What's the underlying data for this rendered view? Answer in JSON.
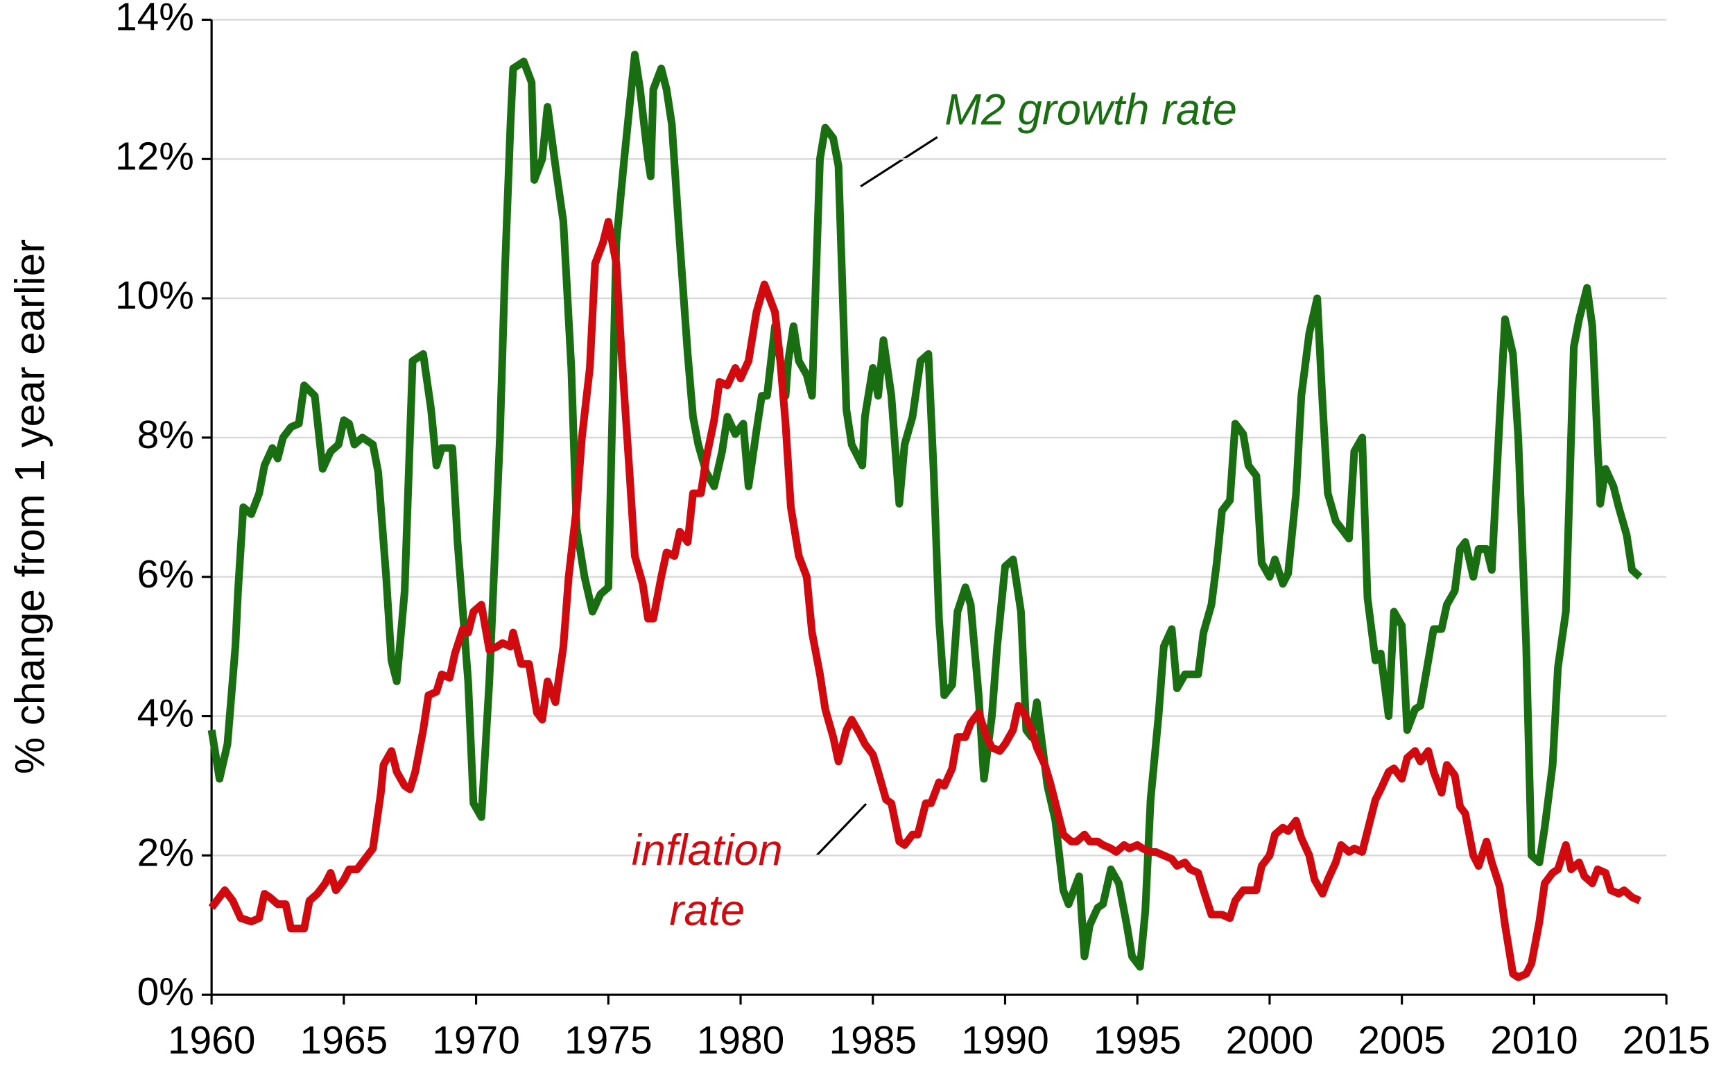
{
  "chart_data": {
    "type": "line",
    "y_label": "% change from 1 year earlier",
    "xlim": [
      1960,
      2015
    ],
    "xticks": [
      1960,
      1965,
      1970,
      1975,
      1980,
      1985,
      1990,
      1995,
      2000,
      2005,
      2010,
      2015
    ],
    "ylim": [
      0,
      14
    ],
    "yticks": [
      {
        "value": 0,
        "label": "0%"
      },
      {
        "value": 2,
        "label": "2%"
      },
      {
        "value": 4,
        "label": "4%"
      },
      {
        "value": 6,
        "label": "6%"
      },
      {
        "value": 8,
        "label": "8%"
      },
      {
        "value": 10,
        "label": "10%"
      },
      {
        "value": 12,
        "label": "12%"
      },
      {
        "value": 14,
        "label": "14%"
      }
    ],
    "grid": true,
    "series": [
      {
        "name": "M2 growth rate",
        "color": "#1a6e12",
        "x": [
          1960.0,
          1960.3,
          1960.6,
          1960.9,
          1961.0,
          1961.2,
          1961.5,
          1961.8,
          1962.0,
          1962.3,
          1962.5,
          1962.7,
          1963.0,
          1963.3,
          1963.5,
          1963.9,
          1964.2,
          1964.5,
          1964.8,
          1965.0,
          1965.2,
          1965.4,
          1965.7,
          1966.1,
          1966.3,
          1966.6,
          1966.8,
          1967.0,
          1967.3,
          1967.6,
          1968.0,
          1968.3,
          1968.5,
          1968.7,
          1969.1,
          1969.3,
          1969.7,
          1969.9,
          1970.2,
          1970.5,
          1970.9,
          1971.1,
          1971.3,
          1971.4,
          1971.8,
          1972.1,
          1972.2,
          1972.5,
          1972.7,
          1973.0,
          1973.3,
          1973.6,
          1973.8,
          1974.1,
          1974.4,
          1974.7,
          1975.0,
          1975.3,
          1975.6,
          1976.0,
          1976.2,
          1976.5,
          1976.6,
          1976.7,
          1977.0,
          1977.2,
          1977.4,
          1977.7,
          1978.0,
          1978.2,
          1978.4,
          1978.7,
          1979.0,
          1979.3,
          1979.5,
          1979.8,
          1980.1,
          1980.3,
          1980.6,
          1980.8,
          1981.0,
          1981.3,
          1981.5,
          1981.7,
          1981.8,
          1982.0,
          1982.2,
          1982.5,
          1982.7,
          1983.0,
          1983.2,
          1983.5,
          1983.7,
          1984.0,
          1984.2,
          1984.6,
          1984.7,
          1985.0,
          1985.2,
          1985.4,
          1985.7,
          1986.0,
          1986.2,
          1986.5,
          1986.8,
          1987.1,
          1987.3,
          1987.5,
          1987.7,
          1988.0,
          1988.2,
          1988.5,
          1988.7,
          1989.0,
          1989.2,
          1989.5,
          1989.7,
          1990.0,
          1990.3,
          1990.6,
          1990.8,
          1991.0,
          1991.2,
          1991.6,
          1991.9,
          1992.2,
          1992.4,
          1992.8,
          1993.0,
          1993.2,
          1993.5,
          1993.7,
          1994.0,
          1994.3,
          1994.6,
          1994.8,
          1995.1,
          1995.3,
          1995.5,
          1995.8,
          1996.0,
          1996.3,
          1996.5,
          1996.8,
          1997.3,
          1997.5,
          1997.8,
          1998.0,
          1998.2,
          1998.5,
          1998.7,
          1999.0,
          1999.2,
          1999.5,
          1999.7,
          2000.0,
          2000.2,
          2000.5,
          2000.7,
          2001.0,
          2001.2,
          2001.5,
          2001.8,
          2002.0,
          2002.2,
          2002.5,
          2002.7,
          2003.0,
          2003.2,
          2003.5,
          2003.7,
          2004.0,
          2004.2,
          2004.5,
          2004.7,
          2005.0,
          2005.2,
          2005.5,
          2005.7,
          2006.0,
          2006.2,
          2006.5,
          2006.7,
          2007.0,
          2007.2,
          2007.4,
          2007.7,
          2007.9,
          2008.2,
          2008.4,
          2008.7,
          2008.9,
          2009.2,
          2009.4,
          2009.7,
          2009.9,
          2010.2,
          2010.4,
          2010.7,
          2010.9,
          2011.2,
          2011.5,
          2011.7,
          2012.0,
          2012.2,
          2012.5,
          2012.7,
          2013.0,
          2013.2,
          2013.5,
          2013.7,
          2014.0
        ],
        "values": [
          3.8,
          3.1,
          3.6,
          5.0,
          5.8,
          7.0,
          6.9,
          7.2,
          7.6,
          7.85,
          7.7,
          8.0,
          8.15,
          8.2,
          8.75,
          8.6,
          7.55,
          7.8,
          7.9,
          8.25,
          8.2,
          7.9,
          8.0,
          7.9,
          7.5,
          6.0,
          4.8,
          4.5,
          5.8,
          9.1,
          9.2,
          8.4,
          7.6,
          7.85,
          7.85,
          6.5,
          4.5,
          2.75,
          2.55,
          4.5,
          8.0,
          10.5,
          12.5,
          13.3,
          13.4,
          13.1,
          11.7,
          12.0,
          12.75,
          11.9,
          11.1,
          9.0,
          6.7,
          6.0,
          5.5,
          5.75,
          5.85,
          10.8,
          12.0,
          13.5,
          13.0,
          12.0,
          11.75,
          13.0,
          13.3,
          13.0,
          12.5,
          10.8,
          9.2,
          8.3,
          7.9,
          7.5,
          7.3,
          7.8,
          8.3,
          8.05,
          8.2,
          7.3,
          8.1,
          8.6,
          8.6,
          9.6,
          9.1,
          8.6,
          9.1,
          9.6,
          9.1,
          8.9,
          8.6,
          12.0,
          12.45,
          12.3,
          11.9,
          8.4,
          7.9,
          7.6,
          8.3,
          9.0,
          8.6,
          9.4,
          8.6,
          7.05,
          7.9,
          8.3,
          9.1,
          9.2,
          7.5,
          5.4,
          4.3,
          4.45,
          5.5,
          5.85,
          5.6,
          4.3,
          3.1,
          4.0,
          5.0,
          6.15,
          6.25,
          5.5,
          3.8,
          3.7,
          4.2,
          3.0,
          2.5,
          1.5,
          1.3,
          1.7,
          0.55,
          1.0,
          1.25,
          1.3,
          1.8,
          1.6,
          1.0,
          0.55,
          0.4,
          1.2,
          2.8,
          4.0,
          5.0,
          5.25,
          4.4,
          4.6,
          4.6,
          5.2,
          5.6,
          6.2,
          6.95,
          7.1,
          8.2,
          8.05,
          7.6,
          7.45,
          6.2,
          6.0,
          6.25,
          5.9,
          6.05,
          7.2,
          8.6,
          9.5,
          10.0,
          8.5,
          7.2,
          6.8,
          6.7,
          6.55,
          7.8,
          8.0,
          5.7,
          4.8,
          4.9,
          4.0,
          5.5,
          5.3,
          3.8,
          4.1,
          4.15,
          4.8,
          5.25,
          5.25,
          5.6,
          5.8,
          6.4,
          6.5,
          6.0,
          6.4,
          6.4,
          6.1,
          8.3,
          9.7,
          9.2,
          8.0,
          5.0,
          2.0,
          1.9,
          2.4,
          3.3,
          4.7,
          5.5,
          9.3,
          9.7,
          10.15,
          9.6,
          7.05,
          7.55,
          7.3,
          7.0,
          6.6,
          6.1,
          6.0
        ]
      },
      {
        "name": "inflation rate",
        "color": "#d10a10",
        "x": [
          1960.0,
          1960.2,
          1960.5,
          1960.8,
          1961.1,
          1961.5,
          1961.8,
          1962.0,
          1962.2,
          1962.5,
          1962.8,
          1963.0,
          1963.2,
          1963.5,
          1963.7,
          1964.0,
          1964.3,
          1964.5,
          1964.7,
          1965.0,
          1965.2,
          1965.5,
          1965.8,
          1966.1,
          1966.4,
          1966.5,
          1966.8,
          1967.0,
          1967.3,
          1967.5,
          1967.7,
          1968.0,
          1968.2,
          1968.5,
          1968.7,
          1969.0,
          1969.2,
          1969.5,
          1969.7,
          1969.9,
          1970.2,
          1970.5,
          1970.8,
          1971.0,
          1971.3,
          1971.4,
          1971.7,
          1972.0,
          1972.3,
          1972.5,
          1972.7,
          1973.0,
          1973.3,
          1973.5,
          1973.8,
          1974.0,
          1974.3,
          1974.5,
          1974.8,
          1975.0,
          1975.3,
          1975.5,
          1975.8,
          1976.0,
          1976.3,
          1976.5,
          1976.7,
          1977.0,
          1977.2,
          1977.5,
          1977.7,
          1978.0,
          1978.2,
          1978.5,
          1978.7,
          1979.0,
          1979.2,
          1979.5,
          1979.8,
          1980.0,
          1980.3,
          1980.6,
          1980.9,
          1981.3,
          1981.5,
          1981.7,
          1981.9,
          1982.2,
          1982.5,
          1982.7,
          1983.0,
          1983.2,
          1983.5,
          1983.7,
          1984.0,
          1984.2,
          1984.5,
          1984.7,
          1985.0,
          1985.2,
          1985.5,
          1985.7,
          1986.0,
          1986.2,
          1986.5,
          1986.7,
          1987.0,
          1987.2,
          1987.5,
          1987.7,
          1988.0,
          1988.2,
          1988.5,
          1988.7,
          1989.0,
          1989.3,
          1989.5,
          1989.8,
          1990.0,
          1990.3,
          1990.5,
          1990.7,
          1991.0,
          1991.2,
          1991.5,
          1991.7,
          1992.0,
          1992.2,
          1992.5,
          1992.7,
          1993.0,
          1993.2,
          1993.5,
          1993.7,
          1994.0,
          1994.2,
          1994.5,
          1994.7,
          1995.0,
          1995.2,
          1995.5,
          1995.7,
          1996.0,
          1996.3,
          1996.5,
          1996.8,
          1997.0,
          1997.3,
          1997.5,
          1997.8,
          1998.0,
          1998.2,
          1998.5,
          1998.7,
          1999.0,
          1999.2,
          1999.5,
          1999.7,
          2000.0,
          2000.2,
          2000.5,
          2000.7,
          2001.0,
          2001.2,
          2001.5,
          2001.7,
          2002.0,
          2002.2,
          2002.5,
          2002.7,
          2003.0,
          2003.2,
          2003.5,
          2003.7,
          2004.0,
          2004.2,
          2004.5,
          2004.7,
          2005.0,
          2005.2,
          2005.5,
          2005.7,
          2006.0,
          2006.2,
          2006.5,
          2006.7,
          2007.0,
          2007.2,
          2007.4,
          2007.7,
          2007.9,
          2008.2,
          2008.4,
          2008.7,
          2008.9,
          2009.2,
          2009.4,
          2009.7,
          2009.9,
          2010.2,
          2010.4,
          2010.7,
          2010.9,
          2011.2,
          2011.4,
          2011.7,
          2011.9,
          2012.2,
          2012.4,
          2012.7,
          2012.9,
          2013.2,
          2013.4,
          2013.7,
          2014.0
        ],
        "values": [
          1.25,
          1.35,
          1.5,
          1.35,
          1.1,
          1.05,
          1.1,
          1.45,
          1.4,
          1.3,
          1.3,
          0.95,
          0.95,
          0.95,
          1.35,
          1.45,
          1.6,
          1.75,
          1.5,
          1.65,
          1.8,
          1.8,
          1.95,
          2.1,
          2.9,
          3.3,
          3.5,
          3.2,
          3.0,
          2.95,
          3.2,
          3.8,
          4.3,
          4.35,
          4.6,
          4.55,
          4.9,
          5.25,
          5.2,
          5.5,
          5.6,
          4.95,
          5.0,
          5.05,
          5.0,
          5.2,
          4.75,
          4.75,
          4.05,
          3.95,
          4.5,
          4.2,
          5.0,
          6.0,
          7.0,
          8.0,
          9.0,
          10.5,
          10.8,
          11.1,
          10.5,
          9.2,
          7.5,
          6.3,
          5.9,
          5.4,
          5.4,
          6.0,
          6.35,
          6.3,
          6.65,
          6.5,
          7.2,
          7.2,
          7.7,
          8.25,
          8.8,
          8.75,
          9.0,
          8.85,
          9.1,
          9.8,
          10.2,
          9.8,
          9.1,
          8.2,
          7.0,
          6.3,
          6.0,
          5.2,
          4.6,
          4.1,
          3.7,
          3.35,
          3.8,
          3.95,
          3.75,
          3.6,
          3.45,
          3.2,
          2.8,
          2.75,
          2.2,
          2.15,
          2.3,
          2.3,
          2.75,
          2.75,
          3.05,
          3.0,
          3.25,
          3.7,
          3.7,
          3.9,
          4.05,
          3.7,
          3.55,
          3.5,
          3.6,
          3.8,
          4.15,
          4.05,
          3.8,
          3.55,
          3.3,
          3.05,
          2.6,
          2.3,
          2.2,
          2.2,
          2.3,
          2.2,
          2.2,
          2.15,
          2.1,
          2.05,
          2.15,
          2.1,
          2.15,
          2.1,
          2.05,
          2.05,
          2.0,
          1.95,
          1.85,
          1.9,
          1.8,
          1.75,
          1.5,
          1.15,
          1.15,
          1.15,
          1.1,
          1.35,
          1.5,
          1.5,
          1.5,
          1.85,
          2.0,
          2.3,
          2.4,
          2.35,
          2.5,
          2.25,
          2.0,
          1.65,
          1.45,
          1.65,
          1.9,
          2.15,
          2.05,
          2.1,
          2.05,
          2.35,
          2.8,
          2.95,
          3.2,
          3.25,
          3.1,
          3.4,
          3.5,
          3.35,
          3.5,
          3.2,
          2.9,
          3.3,
          3.15,
          2.7,
          2.6,
          2.0,
          1.85,
          2.2,
          1.9,
          1.55,
          1.0,
          0.3,
          0.25,
          0.3,
          0.45,
          1.05,
          1.6,
          1.75,
          1.8,
          2.15,
          1.8,
          1.9,
          1.7,
          1.6,
          1.8,
          1.75,
          1.5,
          1.45,
          1.5,
          1.4,
          1.35
        ]
      }
    ]
  }
}
